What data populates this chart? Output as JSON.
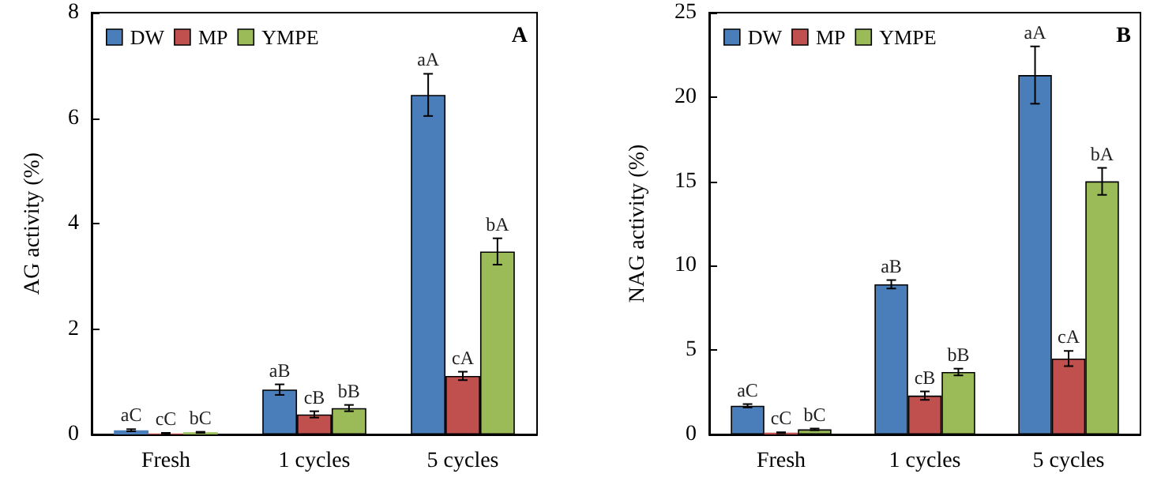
{
  "chart_data": [
    {
      "type": "bar",
      "ylabel": "AG activity (%)",
      "categories": [
        "Fresh",
        "1 cycles",
        "5 cycles"
      ],
      "annotations": [
        "A"
      ],
      "ylim": [
        0,
        8
      ],
      "yticks": [
        0,
        2,
        4,
        6,
        8
      ],
      "grid": false,
      "legend": "top left",
      "series": [
        {
          "name": "DW",
          "color": "#4a7ebb",
          "values": [
            0.08,
            0.85,
            6.44
          ],
          "errors": [
            0.02,
            0.1,
            0.4
          ],
          "value_labels": [
            "aC",
            "aB",
            "aA"
          ]
        },
        {
          "name": "MP",
          "color": "#c0504d",
          "values": [
            0.02,
            0.38,
            1.11
          ],
          "errors": [
            0.01,
            0.06,
            0.08
          ],
          "value_labels": [
            "cC",
            "cB",
            "cA"
          ]
        },
        {
          "name": "YMPE",
          "color": "#9bbb59",
          "values": [
            0.04,
            0.5,
            3.47
          ],
          "errors": [
            0.01,
            0.06,
            0.25
          ],
          "value_labels": [
            "bC",
            "bB",
            "bA"
          ]
        }
      ]
    },
    {
      "type": "bar",
      "ylabel": "NAG activity (%)",
      "categories": [
        "Fresh",
        "1 cycles",
        "5 cycles"
      ],
      "annotations": [
        "B"
      ],
      "ylim": [
        0,
        25
      ],
      "yticks": [
        0,
        5,
        10,
        15,
        20,
        25
      ],
      "grid": false,
      "legend": "top left",
      "series": [
        {
          "name": "DW",
          "color": "#4a7ebb",
          "values": [
            1.7,
            8.9,
            21.3
          ],
          "errors": [
            0.1,
            0.25,
            1.7
          ],
          "value_labels": [
            "aC",
            "aB",
            "aA"
          ]
        },
        {
          "name": "MP",
          "color": "#c0504d",
          "values": [
            0.1,
            2.3,
            4.5
          ],
          "errors": [
            0.03,
            0.25,
            0.45
          ],
          "value_labels": [
            "cC",
            "cB",
            "cA"
          ]
        },
        {
          "name": "YMPE",
          "color": "#9bbb59",
          "values": [
            0.3,
            3.7,
            15.0
          ],
          "errors": [
            0.05,
            0.2,
            0.8
          ],
          "value_labels": [
            "bC",
            "bB",
            "bA"
          ]
        }
      ]
    }
  ]
}
